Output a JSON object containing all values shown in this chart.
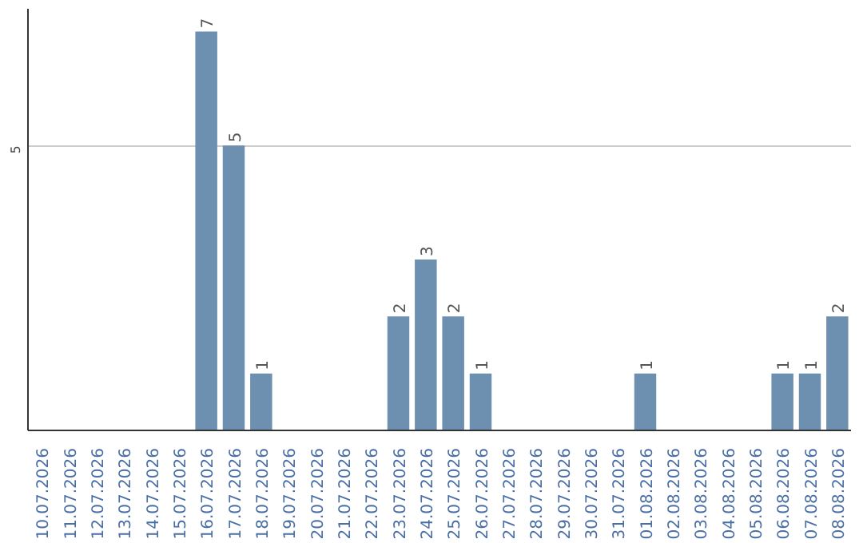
{
  "chart_data": {
    "type": "bar",
    "categories": [
      "10.07.2026",
      "11.07.2026",
      "12.07.2026",
      "13.07.2026",
      "14.07.2026",
      "15.07.2026",
      "16.07.2026",
      "17.07.2026",
      "18.07.2026",
      "19.07.2026",
      "20.07.2026",
      "21.07.2026",
      "22.07.2026",
      "23.07.2026",
      "24.07.2026",
      "25.07.2026",
      "26.07.2026",
      "27.07.2026",
      "28.07.2026",
      "29.07.2026",
      "30.07.2026",
      "31.07.2026",
      "01.08.2026",
      "02.08.2026",
      "03.08.2026",
      "04.08.2026",
      "05.08.2026",
      "06.08.2026",
      "07.08.2026",
      "08.08.2026"
    ],
    "values": [
      0,
      0,
      0,
      0,
      0,
      0,
      7,
      5,
      1,
      0,
      0,
      0,
      0,
      2,
      3,
      2,
      1,
      0,
      0,
      0,
      0,
      0,
      1,
      0,
      0,
      0,
      0,
      1,
      1,
      2
    ],
    "value_labels": [
      null,
      null,
      null,
      null,
      null,
      null,
      "7",
      "5",
      "1",
      null,
      null,
      null,
      null,
      "2",
      "3",
      "2",
      "1",
      null,
      null,
      null,
      null,
      null,
      "1",
      null,
      null,
      null,
      null,
      "1",
      "1",
      "2"
    ],
    "color": "#6d8fb0",
    "ylim": [
      0,
      7.4
    ],
    "yticks": [
      5
    ],
    "grid": "y"
  }
}
